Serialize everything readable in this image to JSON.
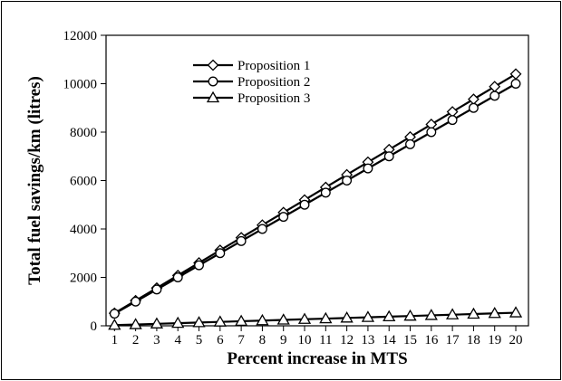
{
  "chart_data": {
    "type": "line",
    "xlabel": "Percent increase in MTS",
    "ylabel": "Total fuel savings/km (litres)",
    "x": [
      1,
      2,
      3,
      4,
      5,
      6,
      7,
      8,
      9,
      10,
      11,
      12,
      13,
      14,
      15,
      16,
      17,
      18,
      19,
      20
    ],
    "xlim": [
      0.6,
      20.6
    ],
    "ylim": [
      0,
      12000
    ],
    "yticks": [
      0,
      2000,
      4000,
      6000,
      8000,
      10000,
      12000
    ],
    "grid": false,
    "legend_position": "top-center",
    "series": [
      {
        "name": "Proposition 1",
        "marker": "diamond",
        "values": [
          520,
          1040,
          1560,
          2080,
          2600,
          3120,
          3640,
          4160,
          4680,
          5200,
          5720,
          6240,
          6760,
          7280,
          7800,
          8320,
          8840,
          9360,
          9880,
          10400
        ]
      },
      {
        "name": "Proposition 2",
        "marker": "circle",
        "values": [
          500,
          1000,
          1500,
          2000,
          2500,
          3000,
          3500,
          4000,
          4500,
          5000,
          5500,
          6000,
          6500,
          7000,
          7500,
          8000,
          8500,
          9000,
          9500,
          10000
        ]
      },
      {
        "name": "Proposition 3",
        "marker": "triangle",
        "values": [
          27,
          54,
          81,
          108,
          135,
          162,
          189,
          216,
          243,
          270,
          297,
          324,
          351,
          378,
          405,
          432,
          459,
          486,
          513,
          540
        ]
      }
    ],
    "colors": {
      "line": "#000000",
      "marker_fill": "#ffffff",
      "frame": "#000000"
    }
  }
}
